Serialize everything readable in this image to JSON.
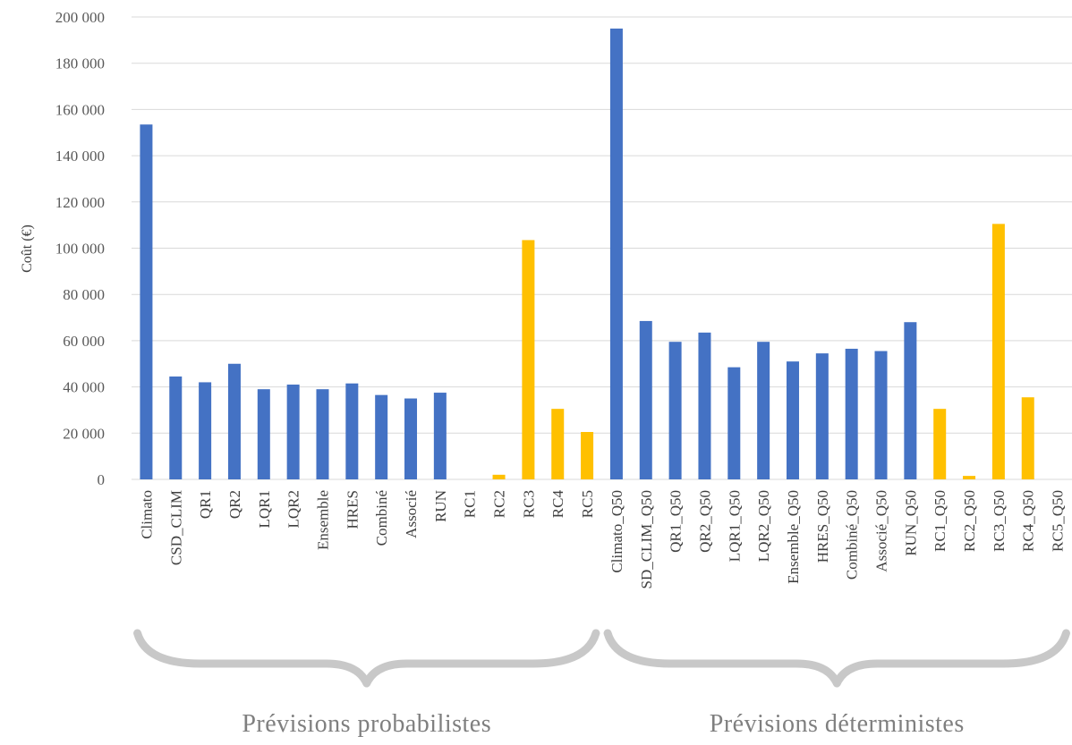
{
  "chart_data": {
    "type": "bar",
    "ylabel": "Coût (€)",
    "ylim": [
      0,
      200000
    ],
    "yticks": [
      0,
      20000,
      40000,
      60000,
      80000,
      100000,
      120000,
      140000,
      160000,
      180000,
      200000
    ],
    "ytick_labels": [
      "0",
      "20 000",
      "40 000",
      "60 000",
      "80 000",
      "100 000",
      "120 000",
      "140 000",
      "160 000",
      "180 000",
      "200 000"
    ],
    "grid": "horizontal",
    "legend": "none",
    "colors": {
      "standard": "#4472C4",
      "reference": "#FFC000"
    },
    "categories": [
      "Climato",
      "CSD_CLIM",
      "QR1",
      "QR2",
      "LQR1",
      "LQR2",
      "Ensemble",
      "HRES",
      "Combiné",
      "Associé",
      "RUN",
      "RC1",
      "RC2",
      "RC3",
      "RC4",
      "RC5",
      "Climato_Q50",
      "SD_CLIM_Q50",
      "QR1_Q50",
      "QR2_Q50",
      "LQR1_Q50",
      "LQR2_Q50",
      "Ensemble_Q50",
      "HRES_Q50",
      "Combiné_Q50",
      "Associé_Q50",
      "RUN_Q50",
      "RC1_Q50",
      "RC2_Q50",
      "RC3_Q50",
      "RC4_Q50",
      "RC5_Q50"
    ],
    "values": [
      153500,
      44500,
      42000,
      50000,
      39000,
      41000,
      39000,
      41500,
      36500,
      35000,
      37500,
      0,
      2000,
      103500,
      30500,
      20500,
      195000,
      68500,
      59500,
      63500,
      48500,
      59500,
      51000,
      54500,
      56500,
      55500,
      68000,
      30500,
      1500,
      110500,
      35500,
      0
    ],
    "bar_colors": [
      "#4472C4",
      "#4472C4",
      "#4472C4",
      "#4472C4",
      "#4472C4",
      "#4472C4",
      "#4472C4",
      "#4472C4",
      "#4472C4",
      "#4472C4",
      "#4472C4",
      "#FFC000",
      "#FFC000",
      "#FFC000",
      "#FFC000",
      "#FFC000",
      "#4472C4",
      "#4472C4",
      "#4472C4",
      "#4472C4",
      "#4472C4",
      "#4472C4",
      "#4472C4",
      "#4472C4",
      "#4472C4",
      "#4472C4",
      "#4472C4",
      "#FFC000",
      "#FFC000",
      "#FFC000",
      "#FFC000",
      "#FFC000"
    ],
    "groups": [
      {
        "label": "Prévisions probabilistes",
        "from": 0,
        "to": 15
      },
      {
        "label": "Prévisions déterministes",
        "from": 16,
        "to": 31
      }
    ]
  }
}
